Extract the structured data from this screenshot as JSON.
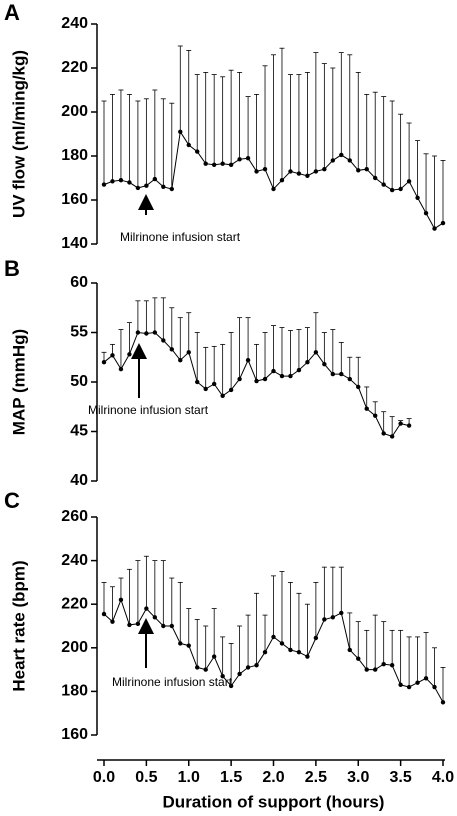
{
  "chart_data": [
    {
      "type": "line",
      "panel_label": "A",
      "ylabel": "UV flow (ml/ming/kg)",
      "annotation": "Milrinone infusion start",
      "color": "#000000",
      "x": [
        0,
        0.1,
        0.2,
        0.3,
        0.4,
        0.5,
        0.6,
        0.7,
        0.8,
        0.9,
        1,
        1.1,
        1.2,
        1.3,
        1.4,
        1.5,
        1.6,
        1.7,
        1.8,
        1.9,
        2,
        2.1,
        2.2,
        2.3,
        2.4,
        2.5,
        2.6,
        2.7,
        2.8,
        2.9,
        3,
        3.1,
        3.2,
        3.3,
        3.4,
        3.5,
        3.6,
        3.7,
        3.8,
        3.9,
        4
      ],
      "values": [
        167,
        168.5,
        169,
        168,
        165.5,
        166.5,
        169.5,
        166,
        165,
        191,
        185,
        182,
        176.5,
        176,
        176.5,
        176,
        178.5,
        179,
        173,
        174,
        165,
        169,
        173,
        172,
        171,
        173,
        174,
        178,
        180.5,
        178,
        173.5,
        174,
        170,
        167,
        164.5,
        165,
        168.5,
        161,
        154,
        147,
        149.5
      ],
      "errors": [
        38,
        39.5,
        41,
        40,
        39.5,
        39.5,
        40.5,
        40,
        39,
        39,
        43,
        35,
        41.5,
        41,
        39.5,
        43,
        39.5,
        28,
        35,
        47,
        61,
        60,
        44,
        45,
        47,
        54,
        48,
        42,
        46.5,
        48,
        44.5,
        34,
        39,
        40,
        40.5,
        34,
        26.5,
        26,
        27,
        33,
        28.5
      ],
      "xlim": [
        0,
        4
      ],
      "ylim": [
        140,
        240
      ],
      "yticks": [
        140,
        160,
        180,
        200,
        220,
        240
      ]
    },
    {
      "type": "line",
      "panel_label": "B",
      "ylabel": "MAP (mmHg)",
      "annotation": "Milrinone infusion start",
      "color": "#000000",
      "x": [
        0,
        0.1,
        0.2,
        0.3,
        0.4,
        0.5,
        0.6,
        0.7,
        0.8,
        0.9,
        1,
        1.1,
        1.2,
        1.3,
        1.4,
        1.5,
        1.6,
        1.7,
        1.8,
        1.9,
        2,
        2.1,
        2.2,
        2.3,
        2.4,
        2.5,
        2.6,
        2.7,
        2.8,
        2.9,
        3,
        3.1,
        3.2,
        3.3,
        3.4,
        3.5,
        3.6
      ],
      "values": [
        52,
        52.7,
        51.3,
        52.8,
        55,
        54.9,
        55,
        54.2,
        53.3,
        52.2,
        53,
        50,
        49.3,
        49.8,
        48.6,
        49.2,
        50.3,
        52.2,
        50.1,
        50.3,
        51.1,
        50.6,
        50.6,
        51.2,
        52,
        53,
        51.8,
        50.8,
        50.8,
        50.3,
        49.5,
        47.3,
        46.6,
        44.8,
        44.5,
        45.8,
        45.6
      ],
      "errors": [
        1,
        1.1,
        4,
        3.2,
        3.2,
        3.3,
        3.5,
        4.3,
        4.2,
        4.3,
        4,
        5,
        4.2,
        3.8,
        5.2,
        5.8,
        6.2,
        4.3,
        3.7,
        4.7,
        4.6,
        4.9,
        4.6,
        4.1,
        3.5,
        4,
        3.2,
        4.5,
        3.2,
        2.2,
        3,
        2.2,
        1.4,
        2.2,
        2,
        0.3,
        0.7
      ],
      "xlim": [
        0,
        4
      ],
      "ylim": [
        40,
        60
      ],
      "yticks": [
        40,
        45,
        50,
        55,
        60
      ]
    },
    {
      "type": "line",
      "panel_label": "C",
      "ylabel": "Heart rate (bpm)",
      "annotation": "Milrinone infusion start",
      "color": "#000000",
      "xlabel": "Duration of support (hours)",
      "x": [
        0,
        0.1,
        0.2,
        0.3,
        0.4,
        0.5,
        0.6,
        0.7,
        0.8,
        0.9,
        1,
        1.1,
        1.2,
        1.3,
        1.4,
        1.5,
        1.6,
        1.7,
        1.8,
        1.9,
        2,
        2.1,
        2.2,
        2.3,
        2.4,
        2.5,
        2.6,
        2.7,
        2.8,
        2.9,
        3,
        3.1,
        3.2,
        3.3,
        3.4,
        3.5,
        3.6,
        3.7,
        3.8,
        3.9,
        4
      ],
      "values": [
        215.5,
        212,
        222,
        210.5,
        211,
        218,
        214,
        210,
        210,
        202,
        201,
        191,
        190,
        196,
        187,
        182.5,
        188,
        191,
        192,
        198,
        205,
        202,
        199,
        198,
        196,
        204.5,
        213,
        214,
        216,
        199,
        195,
        190,
        190,
        192.5,
        192,
        183,
        182,
        184,
        186,
        182,
        175
      ],
      "errors": [
        14.5,
        16,
        10,
        25.5,
        29,
        24,
        26,
        30,
        22,
        28,
        17,
        22,
        20,
        22,
        18,
        19.5,
        22,
        24,
        33,
        17,
        28,
        33,
        31,
        27,
        24,
        25.5,
        24,
        23,
        21,
        17,
        17,
        18,
        25,
        19.5,
        16,
        25,
        23,
        21,
        21,
        18,
        16
      ],
      "xlim": [
        0,
        4
      ],
      "ylim": [
        160,
        260
      ],
      "yticks": [
        160,
        180,
        200,
        220,
        240,
        260
      ],
      "xticks": [
        {
          "value": 0,
          "label": "0.0"
        },
        0.5,
        {
          "value": 1,
          "label": "1.0"
        },
        1.5,
        {
          "value": 2,
          "label": "2.0"
        },
        2.5,
        {
          "value": 3,
          "label": "3.0"
        },
        3.5,
        {
          "value": 4,
          "label": "4.0"
        }
      ]
    }
  ]
}
